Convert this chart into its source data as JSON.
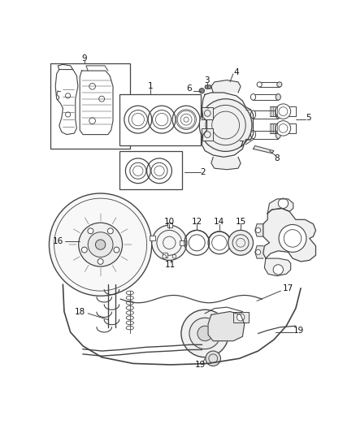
{
  "bg_color": "#ffffff",
  "line_color": "#444444",
  "text_color": "#111111",
  "fig_width": 4.38,
  "fig_height": 5.33,
  "dpi": 100
}
